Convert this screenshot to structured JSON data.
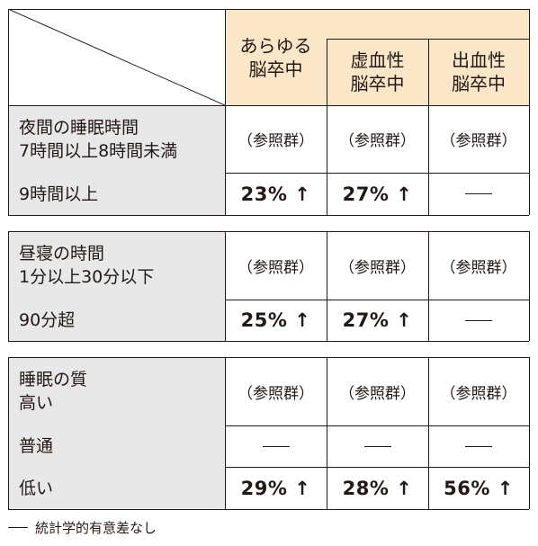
{
  "header": {
    "col_any": "あらゆる\n脳卒中",
    "col_ischemic": "虚血性\n脳卒中",
    "col_hemorrhagic": "出血性\n脳卒中"
  },
  "sections": [
    {
      "rows": [
        {
          "label": "夜間の睡眠時間\n7時間以上8時間未満",
          "cells": [
            "（参照群）",
            "（参照群）",
            "（参照群）"
          ]
        },
        {
          "label": "9時間以上",
          "cells": [
            "23% ↑",
            "27% ↑",
            "—"
          ]
        }
      ]
    },
    {
      "rows": [
        {
          "label": "昼寝の時間\n1分以上30分以下",
          "cells": [
            "（参照群）",
            "（参照群）",
            "（参照群）"
          ]
        },
        {
          "label": "90分超",
          "cells": [
            "25% ↑",
            "27% ↑",
            "—"
          ]
        }
      ]
    },
    {
      "rows": [
        {
          "label": "睡眠の質\n高い",
          "cells": [
            "（参照群）",
            "（参照群）",
            "（参照群）"
          ]
        },
        {
          "label": "普通",
          "cells": [
            "—",
            "—",
            "—"
          ]
        },
        {
          "label": "低い",
          "cells": [
            "29% ↑",
            "28% ↑",
            "56% ↑"
          ]
        }
      ]
    }
  ],
  "footnote": "統計学的有意差なし",
  "colors": {
    "header_bg": "#fbe6c7",
    "label_bg": "#e8e8e8",
    "line": "#231815"
  }
}
